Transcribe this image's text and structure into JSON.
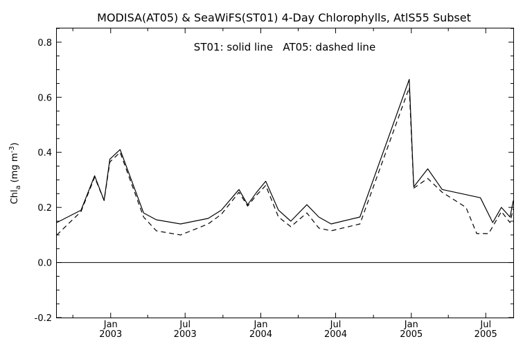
{
  "chart_data": {
    "type": "line",
    "title": "MODISA(AT05) & SeaWiFS(ST01) 4-Day Chlorophylls, AtlS55 Subset",
    "annotation": "ST01: solid line   AT05: dashed line",
    "ylabel_main": "Chl",
    "ylabel_sub": "a",
    "ylabel_units": "(mg m",
    "ylabel_sup": "-3",
    "ylabel_close": ")",
    "ylim": [
      -0.2,
      0.85
    ],
    "xlim": [
      "2002-08-23",
      "2005-09-06"
    ],
    "y_ticks": [
      {
        "value": -0.2,
        "label": "-0.2"
      },
      {
        "value": 0.0,
        "label": "0.0"
      },
      {
        "value": 0.2,
        "label": "0.2"
      },
      {
        "value": 0.4,
        "label": "0.4"
      },
      {
        "value": 0.6,
        "label": "0.6"
      },
      {
        "value": 0.8,
        "label": "0.8"
      }
    ],
    "x_ticks": [
      {
        "date": "2003-01-01",
        "line1": "Jan",
        "line2": "2003"
      },
      {
        "date": "2003-07-01",
        "line1": "Jul",
        "line2": "2003"
      },
      {
        "date": "2004-01-01",
        "line1": "Jan",
        "line2": "2004"
      },
      {
        "date": "2004-07-01",
        "line1": "Jul",
        "line2": "2004"
      },
      {
        "date": "2005-01-01",
        "line1": "Jan",
        "line2": "2005"
      },
      {
        "date": "2005-07-01",
        "line1": "Jul",
        "line2": "2005"
      }
    ],
    "zero_line": 0,
    "series": [
      {
        "name": "ST01",
        "style": "solid",
        "color": "#000000",
        "points": [
          [
            "2002-08-23",
            0.145
          ],
          [
            "2002-10-21",
            0.19
          ],
          [
            "2002-11-23",
            0.315
          ],
          [
            "2002-12-16",
            0.225
          ],
          [
            "2002-12-30",
            0.375
          ],
          [
            "2003-01-24",
            0.41
          ],
          [
            "2003-03-22",
            0.18
          ],
          [
            "2003-04-22",
            0.155
          ],
          [
            "2003-06-20",
            0.14
          ],
          [
            "2003-08-26",
            0.16
          ],
          [
            "2003-09-27",
            0.19
          ],
          [
            "2003-11-09",
            0.265
          ],
          [
            "2003-11-30",
            0.21
          ],
          [
            "2003-12-22",
            0.255
          ],
          [
            "2004-01-13",
            0.295
          ],
          [
            "2004-02-13",
            0.19
          ],
          [
            "2004-03-14",
            0.15
          ],
          [
            "2004-04-22",
            0.21
          ],
          [
            "2004-05-21",
            0.165
          ],
          [
            "2004-06-20",
            0.14
          ],
          [
            "2004-08-29",
            0.165
          ],
          [
            "2004-12-27",
            0.665
          ],
          [
            "2005-01-07",
            0.275
          ],
          [
            "2005-02-10",
            0.34
          ],
          [
            "2005-03-17",
            0.265
          ],
          [
            "2005-06-18",
            0.235
          ],
          [
            "2005-07-18",
            0.145
          ],
          [
            "2005-08-08",
            0.2
          ],
          [
            "2005-08-29",
            0.165
          ],
          [
            "2005-09-06",
            0.225
          ]
        ]
      },
      {
        "name": "AT05",
        "style": "dashed",
        "color": "#000000",
        "points": [
          [
            "2002-08-23",
            0.1
          ],
          [
            "2002-10-21",
            0.185
          ],
          [
            "2002-11-23",
            0.31
          ],
          [
            "2002-12-16",
            0.225
          ],
          [
            "2002-12-30",
            0.365
          ],
          [
            "2003-01-24",
            0.4
          ],
          [
            "2003-03-22",
            0.165
          ],
          [
            "2003-04-22",
            0.115
          ],
          [
            "2003-06-20",
            0.1
          ],
          [
            "2003-08-26",
            0.14
          ],
          [
            "2003-09-27",
            0.175
          ],
          [
            "2003-11-09",
            0.255
          ],
          [
            "2003-11-30",
            0.205
          ],
          [
            "2003-12-22",
            0.245
          ],
          [
            "2004-01-13",
            0.28
          ],
          [
            "2004-02-13",
            0.165
          ],
          [
            "2004-03-14",
            0.13
          ],
          [
            "2004-04-22",
            0.18
          ],
          [
            "2004-05-21",
            0.125
          ],
          [
            "2004-06-20",
            0.115
          ],
          [
            "2004-08-29",
            0.14
          ],
          [
            "2004-12-27",
            0.635
          ],
          [
            "2005-01-07",
            0.27
          ],
          [
            "2005-02-10",
            0.305
          ],
          [
            "2005-03-17",
            0.255
          ],
          [
            "2005-05-14",
            0.2
          ],
          [
            "2005-06-09",
            0.105
          ],
          [
            "2005-07-08",
            0.105
          ],
          [
            "2005-08-08",
            0.185
          ],
          [
            "2005-08-29",
            0.145
          ],
          [
            "2005-09-06",
            0.195
          ]
        ]
      }
    ]
  }
}
